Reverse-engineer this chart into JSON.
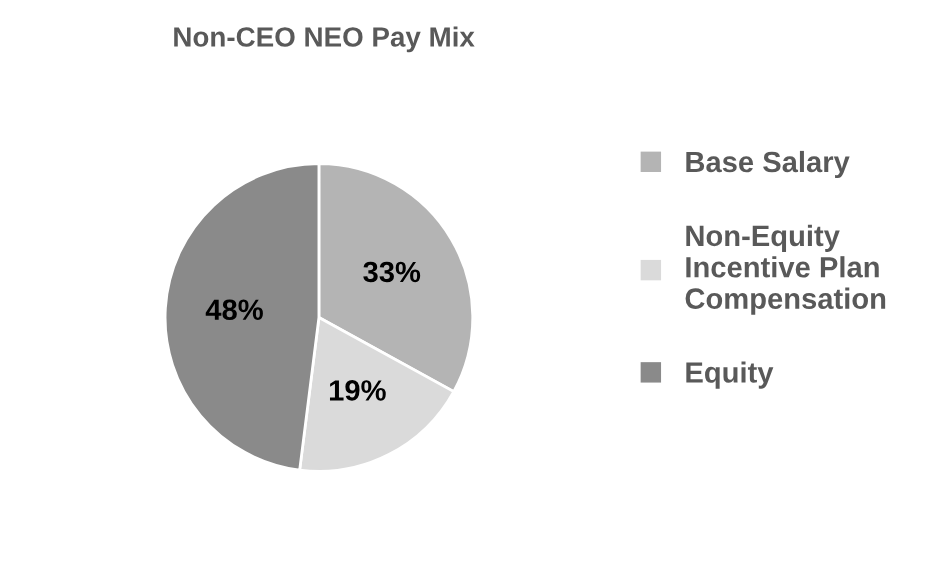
{
  "chart_data": {
    "type": "pie",
    "title": "Non-CEO NEO Pay Mix",
    "categories": [
      "Base Salary",
      "Non-Equity\nIncentive Plan\nCompensation",
      "Equity"
    ],
    "values": [
      33,
      19,
      48
    ],
    "colors": [
      "#b4b4b4",
      "#dadada",
      "#8a8a8a"
    ],
    "value_labels": [
      "33%",
      "19%",
      "48%"
    ],
    "legend": "right"
  }
}
